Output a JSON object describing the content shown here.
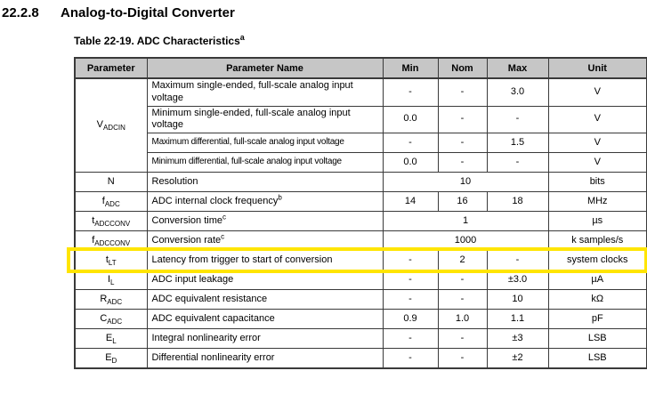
{
  "heading": {
    "number": "22.2.8",
    "title": "Analog-to-Digital Converter"
  },
  "caption": {
    "text": "Table 22-19. ADC Characteristics",
    "note": "a"
  },
  "table": {
    "headers": [
      "Parameter",
      "Parameter Name",
      "Min",
      "Nom",
      "Max",
      "Unit"
    ],
    "rows": [
      {
        "param": {
          "base": "V",
          "sub": "ADCIN",
          "rowspan": 4
        },
        "name": "Maximum single-ended, full-scale analog input voltage",
        "values": [
          "-",
          "-",
          "3.0"
        ],
        "unit": "V"
      },
      {
        "name": "Minimum single-ended, full-scale analog input voltage",
        "values": [
          "0.0",
          "-",
          "-"
        ],
        "unit": "V"
      },
      {
        "name": "Maximum differential, full-scale analog input voltage",
        "condensed": true,
        "values": [
          "-",
          "-",
          "1.5"
        ],
        "unit": "V"
      },
      {
        "name": "Minimum differential, full-scale analog input voltage",
        "condensed": true,
        "values": [
          "0.0",
          "-",
          "-"
        ],
        "unit": "V"
      },
      {
        "param": {
          "base": "N"
        },
        "name": "Resolution",
        "span_value": "10",
        "unit": "bits"
      },
      {
        "param": {
          "base": "f",
          "sub": "ADC"
        },
        "name": "ADC internal clock frequency",
        "note": "b",
        "values": [
          "14",
          "16",
          "18"
        ],
        "unit": "MHz"
      },
      {
        "param": {
          "base": "t",
          "sub": "ADCCONV"
        },
        "name": "Conversion time",
        "note": "c",
        "span_value": "1",
        "unit": "µs"
      },
      {
        "param": {
          "base": "f",
          "sub": "ADCCONV"
        },
        "name": "Conversion rate",
        "note": "c",
        "span_value": "1000",
        "unit": "k samples/s"
      },
      {
        "param": {
          "base": "t",
          "sub": "LT"
        },
        "name": "Latency from trigger to start of conversion",
        "values": [
          "-",
          "2",
          "-"
        ],
        "unit": "system clocks",
        "highlight": true
      },
      {
        "param": {
          "base": "I",
          "sub": "L"
        },
        "name": "ADC input leakage",
        "values": [
          "-",
          "-",
          "±3.0"
        ],
        "unit": "µA"
      },
      {
        "param": {
          "base": "R",
          "sub": "ADC"
        },
        "name": "ADC equivalent resistance",
        "values": [
          "-",
          "-",
          "10"
        ],
        "unit": "kΩ"
      },
      {
        "param": {
          "base": "C",
          "sub": "ADC"
        },
        "name": "ADC equivalent capacitance",
        "values": [
          "0.9",
          "1.0",
          "1.1"
        ],
        "unit": "pF"
      },
      {
        "param": {
          "base": "E",
          "sub": "L"
        },
        "name": "Integral nonlinearity error",
        "values": [
          "-",
          "-",
          "±3"
        ],
        "unit": "LSB"
      },
      {
        "param": {
          "base": "E",
          "sub": "D"
        },
        "name": "Differential nonlinearity error",
        "values": [
          "-",
          "-",
          "±2"
        ],
        "unit": "LSB"
      }
    ]
  },
  "colors": {
    "header_bg": "#c6c6c6",
    "border": "#3a3a3a",
    "highlight": "#ffe500"
  }
}
